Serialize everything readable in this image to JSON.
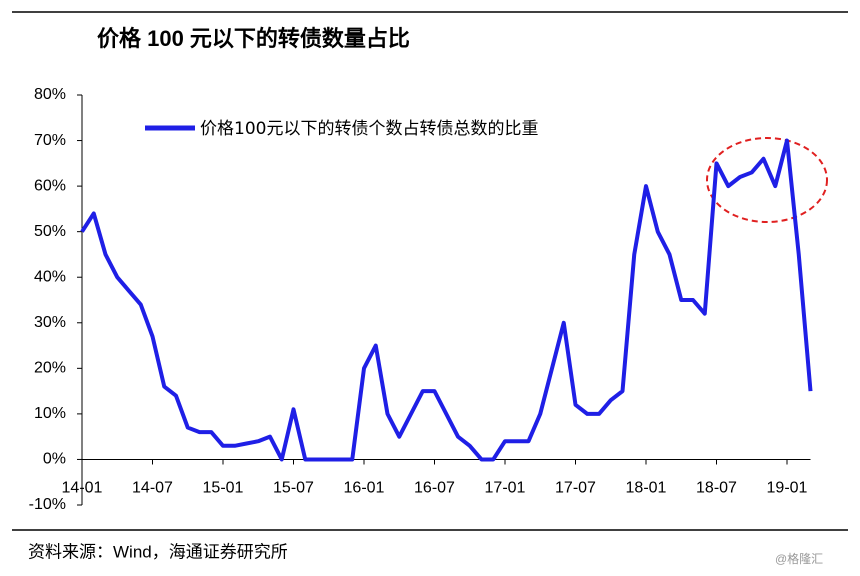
{
  "chart_data": {
    "type": "line",
    "title": "价格 100 元以下的转债数量占比",
    "source": "资料来源：Wind，海通证券研究所",
    "watermark": "@格隆汇",
    "categories": [
      "14-01",
      null,
      null,
      null,
      null,
      null,
      "14-07",
      null,
      null,
      null,
      null,
      null,
      "15-01",
      null,
      null,
      null,
      null,
      null,
      "15-07",
      null,
      null,
      null,
      null,
      null,
      "16-01",
      null,
      null,
      null,
      null,
      null,
      "16-07",
      null,
      null,
      null,
      null,
      null,
      "17-01",
      null,
      null,
      null,
      null,
      null,
      "17-07",
      null,
      null,
      null,
      null,
      null,
      "18-01",
      null,
      null,
      null,
      null,
      null,
      "18-07",
      null,
      null,
      null,
      null,
      null,
      "19-01",
      null,
      null
    ],
    "series": [
      {
        "name": "价格100元以下的转债个数占转债总数的比重",
        "color": "#1f1fe6",
        "values": [
          50,
          54,
          45,
          40,
          37,
          34,
          27,
          16,
          14,
          7,
          6,
          6,
          3,
          3,
          3.5,
          4,
          5,
          0,
          11,
          0,
          0,
          0,
          0,
          0,
          20,
          25,
          10,
          5,
          10,
          15,
          15,
          10,
          5,
          3,
          0,
          0,
          4,
          4,
          4,
          10,
          20,
          30,
          12,
          10,
          10,
          13,
          15,
          45,
          60,
          50,
          45,
          35,
          35,
          32,
          65,
          60,
          62,
          63,
          66,
          60,
          70,
          45,
          15
        ]
      }
    ],
    "ylim": [
      -10,
      80
    ],
    "yticks": [
      {
        "value": -10,
        "label": "-10%"
      },
      {
        "value": 0,
        "label": "0%"
      },
      {
        "value": 10,
        "label": "10%"
      },
      {
        "value": 20,
        "label": "20%"
      },
      {
        "value": 30,
        "label": "30%"
      },
      {
        "value": 40,
        "label": "40%"
      },
      {
        "value": 50,
        "label": "50%"
      },
      {
        "value": 60,
        "label": "60%"
      },
      {
        "value": 70,
        "label": "70%"
      },
      {
        "value": 80,
        "label": "80%"
      }
    ],
    "grid": false
  }
}
